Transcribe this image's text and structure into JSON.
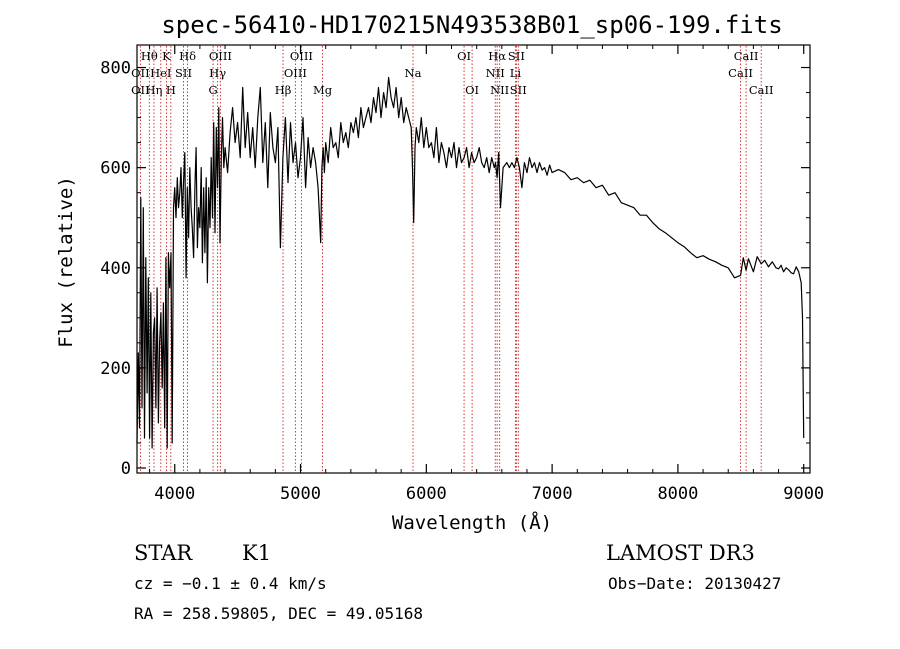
{
  "chart_data": {
    "type": "line",
    "title": "spec-56410-HD170215N493538B01_sp06-199.fits",
    "xlabel": "Wavelength (Å)",
    "ylabel": "Flux (relative)",
    "xlim": [
      3700,
      9050
    ],
    "ylim": [
      -10,
      845
    ],
    "xticks": [
      4000,
      5000,
      6000,
      7000,
      8000,
      9000
    ],
    "yticks": [
      0,
      200,
      400,
      600,
      800
    ],
    "grid": false,
    "line_color": "#000000",
    "marker_color": "#cc2222",
    "series": [
      {
        "x": [
          3700,
          3710,
          3720,
          3730,
          3740,
          3750,
          3760,
          3770,
          3780,
          3790,
          3800,
          3810,
          3820,
          3830,
          3840,
          3850,
          3860,
          3870,
          3880,
          3890,
          3900,
          3910,
          3920,
          3930,
          3940,
          3950,
          3960,
          3970,
          3980,
          3990,
          4000,
          4010,
          4020,
          4030,
          4040,
          4050,
          4060,
          4070,
          4080,
          4090,
          4100,
          4110,
          4120,
          4130,
          4140,
          4150,
          4160,
          4170,
          4180,
          4190,
          4200,
          4210,
          4220,
          4230,
          4240,
          4250,
          4260,
          4270,
          4280,
          4290,
          4300,
          4310,
          4320,
          4330,
          4340,
          4350,
          4360,
          4370,
          4380,
          4390,
          4400,
          4420,
          4440,
          4460,
          4480,
          4500,
          4520,
          4540,
          4560,
          4580,
          4600,
          4620,
          4640,
          4660,
          4680,
          4700,
          4720,
          4740,
          4760,
          4780,
          4800,
          4820,
          4840,
          4860,
          4880,
          4900,
          4920,
          4940,
          4960,
          4980,
          5000,
          5020,
          5040,
          5060,
          5080,
          5100,
          5120,
          5140,
          5160,
          5170,
          5180,
          5190,
          5200,
          5220,
          5240,
          5260,
          5280,
          5300,
          5320,
          5340,
          5360,
          5380,
          5400,
          5420,
          5440,
          5460,
          5480,
          5500,
          5520,
          5540,
          5560,
          5580,
          5600,
          5620,
          5640,
          5660,
          5680,
          5700,
          5720,
          5740,
          5760,
          5780,
          5800,
          5820,
          5840,
          5860,
          5880,
          5890,
          5900,
          5910,
          5920,
          5940,
          5960,
          5980,
          6000,
          6020,
          6040,
          6060,
          6080,
          6100,
          6120,
          6140,
          6160,
          6180,
          6200,
          6220,
          6240,
          6260,
          6280,
          6300,
          6320,
          6340,
          6360,
          6380,
          6400,
          6420,
          6440,
          6460,
          6480,
          6500,
          6520,
          6540,
          6550,
          6563,
          6575,
          6590,
          6610,
          6640,
          6660,
          6680,
          6700,
          6720,
          6740,
          6760,
          6780,
          6800,
          6820,
          6840,
          6860,
          6880,
          6900,
          6920,
          6940,
          6960,
          6980,
          7000,
          7050,
          7100,
          7150,
          7200,
          7250,
          7300,
          7350,
          7400,
          7450,
          7500,
          7550,
          7600,
          7650,
          7700,
          7750,
          7800,
          7850,
          7900,
          7950,
          8000,
          8050,
          8100,
          8150,
          8200,
          8250,
          8300,
          8350,
          8400,
          8450,
          8498,
          8520,
          8542,
          8560,
          8600,
          8630,
          8662,
          8690,
          8720,
          8750,
          8780,
          8800,
          8820,
          8840,
          8860,
          8880,
          8900,
          8920,
          8940,
          8960,
          8980,
          8990,
          9000
        ],
        "y": [
          50,
          230,
          80,
          540,
          120,
          520,
          60,
          420,
          150,
          380,
          60,
          350,
          40,
          270,
          300,
          120,
          360,
          90,
          250,
          310,
          160,
          330,
          80,
          420,
          40,
          430,
          360,
          430,
          50,
          520,
          560,
          500,
          580,
          520,
          550,
          600,
          500,
          570,
          630,
          380,
          560,
          460,
          600,
          520,
          480,
          420,
          560,
          640,
          440,
          520,
          480,
          600,
          410,
          560,
          430,
          580,
          370,
          560,
          480,
          620,
          500,
          690,
          470,
          680,
          560,
          720,
          450,
          620,
          700,
          600,
          640,
          590,
          670,
          720,
          650,
          690,
          620,
          760,
          640,
          710,
          620,
          680,
          600,
          700,
          760,
          610,
          690,
          560,
          710,
          640,
          610,
          680,
          440,
          620,
          700,
          570,
          690,
          610,
          650,
          580,
          620,
          700,
          560,
          660,
          600,
          640,
          610,
          560,
          450,
          600,
          640,
          590,
          650,
          610,
          680,
          640,
          650,
          620,
          690,
          650,
          670,
          640,
          690,
          670,
          700,
          660,
          720,
          680,
          700,
          720,
          690,
          740,
          710,
          760,
          700,
          750,
          720,
          780,
          740,
          720,
          760,
          700,
          740,
          690,
          720,
          700,
          680,
          600,
          490,
          640,
          680,
          650,
          700,
          640,
          680,
          640,
          650,
          620,
          680,
          610,
          650,
          630,
          600,
          640,
          620,
          650,
          600,
          640,
          610,
          620,
          640,
          600,
          630,
          610,
          620,
          640,
          610,
          600,
          620,
          590,
          620,
          600,
          610,
          580,
          630,
          520,
          600,
          610,
          600,
          610,
          600,
          620,
          600,
          560,
          610,
          590,
          620,
          600,
          610,
          590,
          610,
          595,
          600,
          585,
          605,
          590,
          596,
          590,
          576,
          580,
          570,
          575,
          560,
          565,
          545,
          550,
          530,
          525,
          520,
          505,
          505,
          490,
          478,
          470,
          460,
          450,
          442,
          430,
          420,
          424,
          417,
          412,
          405,
          400,
          380,
          385,
          420,
          395,
          418,
          392,
          422,
          408,
          415,
          402,
          412,
          400,
          398,
          405,
          392,
          400,
          396,
          390,
          388,
          402,
          392,
          370,
          300,
          60
        ]
      }
    ],
    "spectral_lines": [
      {
        "label": "Hθ",
        "x": 3798,
        "row": 1
      },
      {
        "label": "OII",
        "x": 3727,
        "row": 2
      },
      {
        "label": "OII",
        "x": 3727,
        "row": 3
      },
      {
        "label": "K",
        "x": 3934,
        "row": 1
      },
      {
        "label": "HeI",
        "x": 3889,
        "row": 2
      },
      {
        "label": "Hη",
        "x": 3835,
        "row": 3
      },
      {
        "label": "SII",
        "x": 4070,
        "row": 2
      },
      {
        "label": "H",
        "x": 3969,
        "row": 3
      },
      {
        "label": "Hδ",
        "x": 4102,
        "row": 1
      },
      {
        "label": "OIII",
        "x": 4363,
        "row": 1
      },
      {
        "label": "Hγ",
        "x": 4341,
        "row": 2
      },
      {
        "label": "G",
        "x": 4305,
        "row": 3
      },
      {
        "label": "OIII",
        "x": 5007,
        "row": 1
      },
      {
        "label": "OIII",
        "x": 4959,
        "row": 2
      },
      {
        "label": "Hβ",
        "x": 4861,
        "row": 3
      },
      {
        "label": "Mg",
        "x": 5175,
        "row": 3
      },
      {
        "label": "Na",
        "x": 5894,
        "row": 2
      },
      {
        "label": "OI",
        "x": 6300,
        "row": 1
      },
      {
        "label": "OI",
        "x": 6364,
        "row": 3
      },
      {
        "label": "Hα",
        "x": 6563,
        "row": 1
      },
      {
        "label": "SII",
        "x": 6716,
        "row": 1
      },
      {
        "label": "NII",
        "x": 6548,
        "row": 2
      },
      {
        "label": "Li",
        "x": 6708,
        "row": 2
      },
      {
        "label": "NII",
        "x": 6583,
        "row": 3
      },
      {
        "label": "SII",
        "x": 6731,
        "row": 3
      },
      {
        "label": "CaII",
        "x": 8542,
        "row": 1
      },
      {
        "label": "CaII",
        "x": 8498,
        "row": 2
      },
      {
        "label": "CaII",
        "x": 8662,
        "row": 3
      }
    ]
  },
  "info": {
    "object_class": "STAR",
    "subclass": "K1",
    "survey": "LAMOST DR3",
    "cz": "cz = −0.1 ± 0.4 km/s",
    "obs_date": "Obs−Date: 20130427",
    "radec": "RA = 258.59805, DEC =  49.05168"
  }
}
